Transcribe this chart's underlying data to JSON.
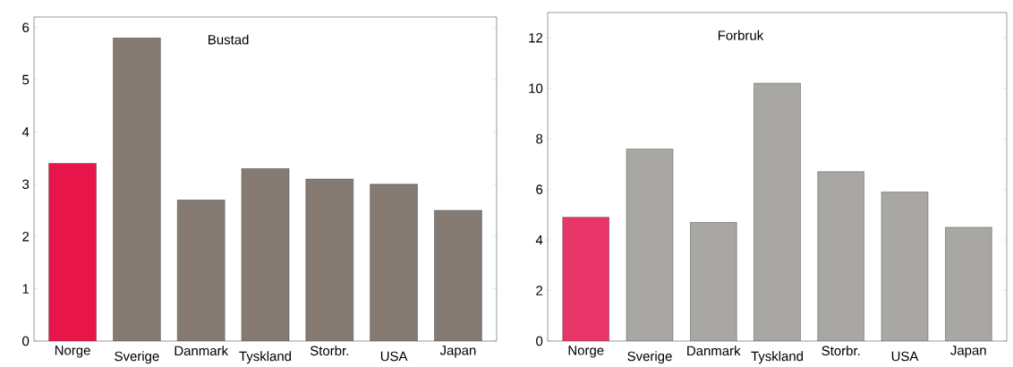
{
  "chart_data": [
    {
      "type": "bar",
      "title": "Bustad",
      "categories": [
        "Norge",
        "Sverige",
        "Danmark",
        "Tyskland",
        "Storbr.",
        "USA",
        "Japan"
      ],
      "values": [
        3.4,
        5.8,
        2.7,
        3.3,
        3.1,
        3.0,
        2.5
      ],
      "colors": [
        "#e8154a",
        "#857b72",
        "#857b72",
        "#857b72",
        "#857b72",
        "#857b72",
        "#857b72"
      ],
      "ylim": [
        0,
        6.2
      ],
      "yticks": [
        0,
        1,
        2,
        3,
        4,
        5,
        6
      ]
    },
    {
      "type": "bar",
      "title": "Forbruk",
      "categories": [
        "Norge",
        "Sverige",
        "Danmark",
        "Tyskland",
        "Storbr.",
        "USA",
        "Japan"
      ],
      "values": [
        4.9,
        7.6,
        4.7,
        10.2,
        6.7,
        5.9,
        4.5
      ],
      "colors": [
        "#e8356a",
        "#a8a7a3",
        "#a8a7a3",
        "#a8a7a3",
        "#a8a7a3",
        "#a8a7a3",
        "#a8a7a3"
      ],
      "ylim": [
        0,
        13
      ],
      "yticks": [
        0,
        2,
        4,
        6,
        8,
        10,
        12
      ]
    }
  ]
}
